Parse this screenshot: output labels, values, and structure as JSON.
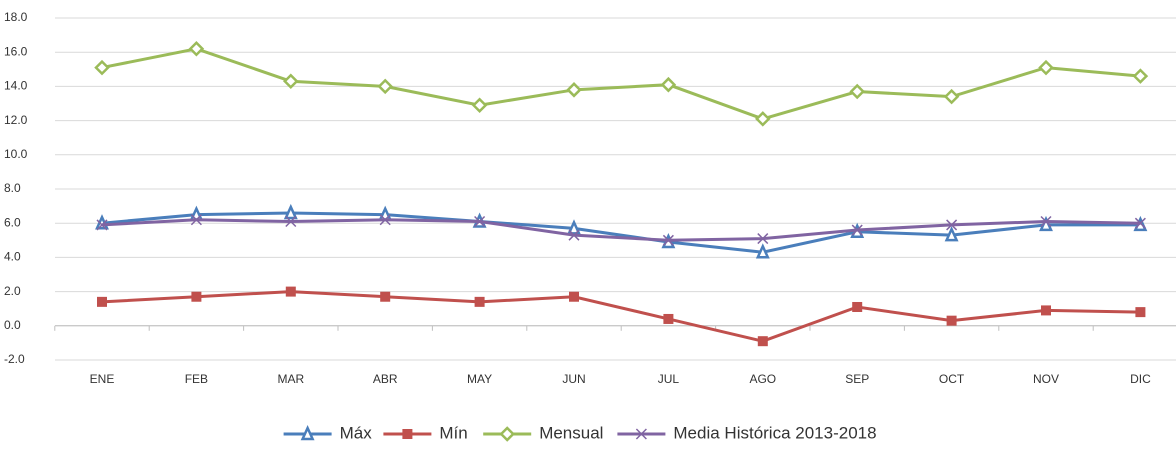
{
  "chart_data": {
    "type": "line",
    "categories": [
      "ENE",
      "FEB",
      "MAR",
      "ABR",
      "MAY",
      "JUN",
      "JUL",
      "AGO",
      "SEP",
      "OCT",
      "NOV",
      "DIC"
    ],
    "series": [
      {
        "name": "Máx",
        "color": "#4a7ebb",
        "marker": "triangle",
        "values": [
          6.0,
          6.5,
          6.6,
          6.5,
          6.1,
          5.7,
          4.9,
          4.3,
          5.5,
          5.3,
          5.9,
          5.9
        ]
      },
      {
        "name": "Mín",
        "color": "#c0504d",
        "marker": "square",
        "values": [
          1.4,
          1.7,
          2.0,
          1.7,
          1.4,
          1.7,
          0.4,
          -0.9,
          1.1,
          0.3,
          0.9,
          0.8
        ]
      },
      {
        "name": "Mensual",
        "color": "#9bbb59",
        "marker": "diamond",
        "values": [
          15.1,
          16.2,
          14.3,
          14.0,
          12.9,
          13.8,
          14.1,
          12.1,
          13.7,
          13.4,
          15.1,
          14.6
        ]
      },
      {
        "name": "Media Histórica 2013-2018",
        "color": "#8064a2",
        "marker": "x",
        "values": [
          5.9,
          6.2,
          6.1,
          6.2,
          6.1,
          5.3,
          5.0,
          5.1,
          5.6,
          5.9,
          6.1,
          6.0
        ]
      }
    ],
    "ylim": [
      -2,
      18
    ],
    "yticks": [
      {
        "value": -2,
        "label": "-2.0"
      },
      {
        "value": 0,
        "label": "0.0"
      },
      {
        "value": 2,
        "label": "2.0"
      },
      {
        "value": 4,
        "label": "4.0"
      },
      {
        "value": 6,
        "label": "6.0"
      },
      {
        "value": 8,
        "label": "8.0"
      },
      {
        "value": 10,
        "label": "10.0"
      },
      {
        "value": 12,
        "label": "12.0"
      },
      {
        "value": 14,
        "label": "14.0"
      },
      {
        "value": 16,
        "label": "16.0"
      },
      {
        "value": 18,
        "label": "18.0"
      }
    ],
    "grid": true,
    "legend": "bottom"
  }
}
